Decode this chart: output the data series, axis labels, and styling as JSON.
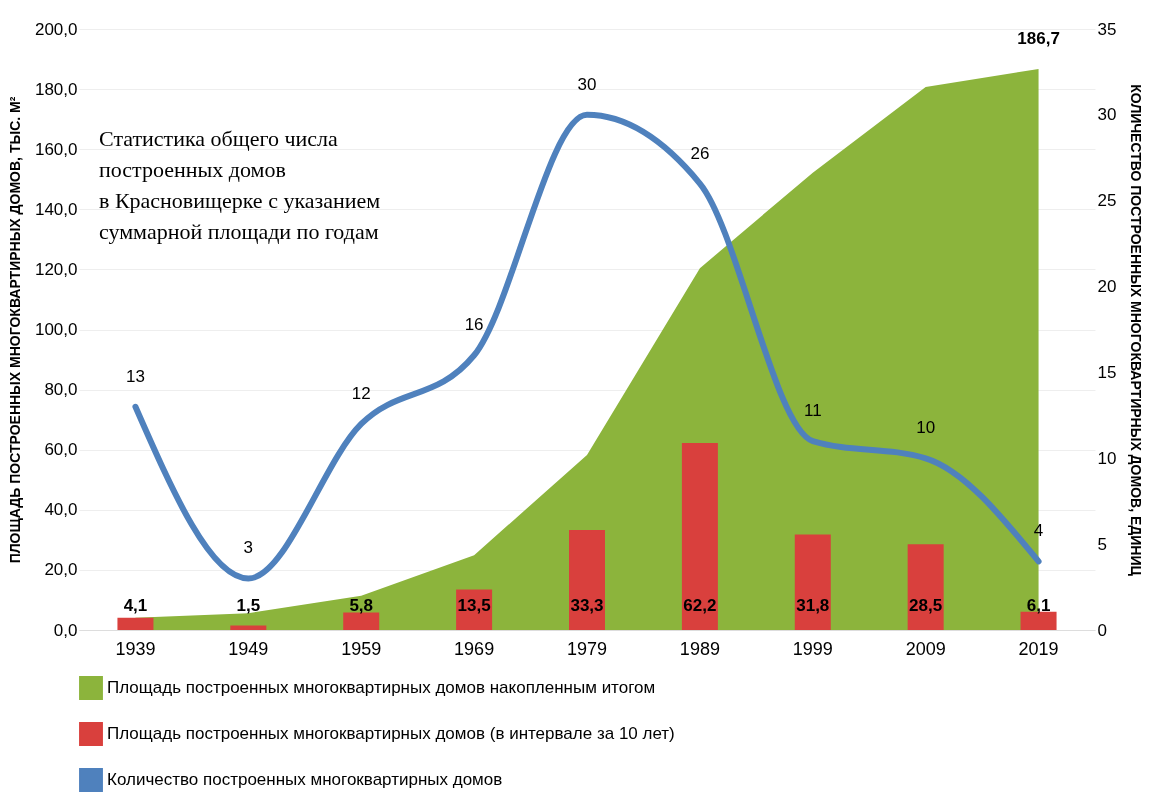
{
  "chart_data": {
    "type": "bar",
    "categories": [
      "1939",
      "1949",
      "1959",
      "1969",
      "1979",
      "1989",
      "1999",
      "2009",
      "2019"
    ],
    "ylabel": "ПЛОЩАДЬ ПОСТРОЕННЫХ МНОГОКВАРТИРНЫХ ДОМОВ, ТЫС. М²",
    "y2label": "КОЛИЧЕСТВО ПОСТРОЕННЫХ МНОГОКВАРТИРНЫХ ДОМОВ, ЕДИНИЦ",
    "ylim": [
      0,
      200
    ],
    "yticks": [
      {
        "value": 0,
        "label": "0,0"
      },
      {
        "value": 20,
        "label": "20,0"
      },
      {
        "value": 40,
        "label": "40,0"
      },
      {
        "value": 60,
        "label": "60,0"
      },
      {
        "value": 80,
        "label": "80,0"
      },
      {
        "value": 100,
        "label": "100,0"
      },
      {
        "value": 120,
        "label": "120,0"
      },
      {
        "value": 140,
        "label": "140,0"
      },
      {
        "value": 160,
        "label": "160,0"
      },
      {
        "value": 180,
        "label": "180,0"
      },
      {
        "value": 200,
        "label": "200,0"
      }
    ],
    "y2lim": [
      0,
      35
    ],
    "y2ticks": [
      0,
      5,
      10,
      15,
      20,
      25,
      30,
      35
    ],
    "grid": "y",
    "legend": "bottom",
    "annotations": [
      "Статистика общего числа\nпостроенных домов\nв Красновищерке с указанием\nсуммарной площади по годам"
    ],
    "series": [
      {
        "name": "Площадь построенных многоквартирных домов накопленным итогом",
        "type": "area",
        "color": "#8cb43c",
        "values": [
          4.1,
          5.6,
          11.4,
          24.9,
          58.2,
          120.4,
          152.2,
          180.7,
          186.7
        ],
        "value_labels": [
          null,
          null,
          null,
          null,
          null,
          null,
          null,
          null,
          "186,7"
        ]
      },
      {
        "name": "Площадь построенных многоквартирных домов (в интервале за 10 лет)",
        "color": "#d9403d",
        "values": [
          4.1,
          1.5,
          5.8,
          13.5,
          33.3,
          62.2,
          31.8,
          28.5,
          6.1
        ],
        "value_labels": [
          "4,1",
          "1,5",
          "5,8",
          "13,5",
          "33,3",
          "62,2",
          "31,8",
          "28,5",
          "6,1"
        ]
      },
      {
        "name": "Количество построенных многоквартирных домов",
        "type": "line",
        "axis": "y2",
        "color": "#4f81bd",
        "values": [
          13,
          3,
          12,
          16,
          30,
          26,
          11,
          10,
          4
        ],
        "data_labels": true
      }
    ]
  }
}
